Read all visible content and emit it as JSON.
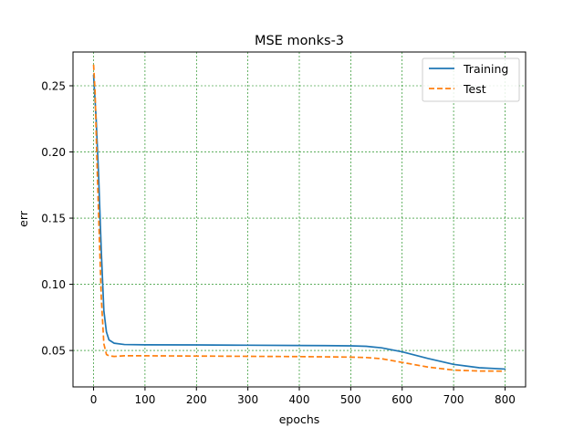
{
  "chart_data": {
    "type": "line",
    "title": "MSE monks-3",
    "xlabel": "epochs",
    "ylabel": "err",
    "xlim": [
      -40,
      840
    ],
    "ylim": [
      0.0225,
      0.2755
    ],
    "xticks": [
      0,
      100,
      200,
      300,
      400,
      500,
      600,
      700,
      800
    ],
    "xtick_labels": [
      "0",
      "100",
      "200",
      "300",
      "400",
      "500",
      "600",
      "700",
      "800"
    ],
    "yticks": [
      0.05,
      0.1,
      0.15,
      0.2,
      0.25
    ],
    "ytick_labels": [
      "0.05",
      "0.10",
      "0.15",
      "0.20",
      "0.25"
    ],
    "grid": true,
    "grid_color": "#008000",
    "legend_position": "top-right",
    "series": [
      {
        "name": "Training",
        "color": "#1f77b4",
        "dash": "solid",
        "x": [
          0,
          5,
          10,
          15,
          20,
          25,
          30,
          40,
          60,
          100,
          200,
          300,
          400,
          450,
          500,
          530,
          560,
          600,
          650,
          700,
          750,
          800
        ],
        "y": [
          0.258,
          0.225,
          0.18,
          0.125,
          0.08,
          0.064,
          0.058,
          0.0555,
          0.0545,
          0.0543,
          0.0542,
          0.054,
          0.0538,
          0.0537,
          0.0535,
          0.0532,
          0.052,
          0.049,
          0.044,
          0.0395,
          0.037,
          0.036
        ]
      },
      {
        "name": "Test",
        "color": "#ff7f0e",
        "dash": "dashed",
        "x": [
          0,
          3,
          6,
          10,
          15,
          20,
          25,
          30,
          40,
          60,
          100,
          200,
          300,
          400,
          450,
          500,
          530,
          560,
          600,
          650,
          700,
          750,
          800
        ],
        "y": [
          0.266,
          0.245,
          0.2,
          0.15,
          0.09,
          0.055,
          0.047,
          0.046,
          0.0455,
          0.046,
          0.046,
          0.0458,
          0.0456,
          0.0454,
          0.0452,
          0.045,
          0.0447,
          0.0438,
          0.041,
          0.0375,
          0.0352,
          0.0345,
          0.0344
        ]
      }
    ]
  }
}
